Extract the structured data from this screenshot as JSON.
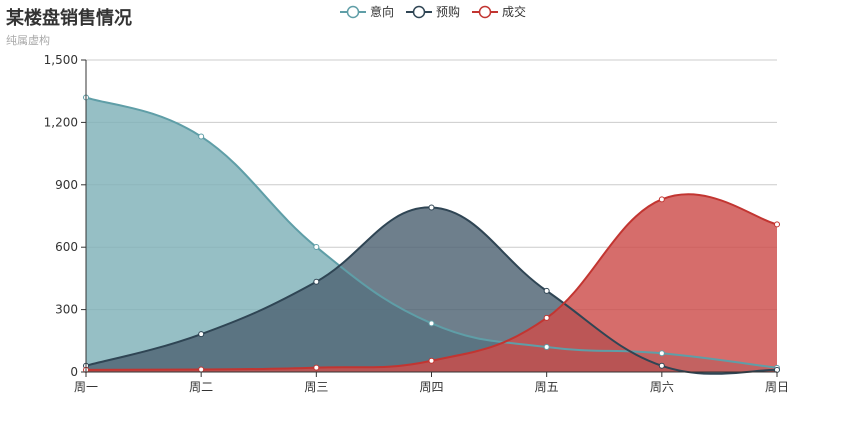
{
  "chart_data": {
    "type": "area",
    "title": "某楼盘销售情况",
    "subtitle": "纯属虚构",
    "categories": [
      "周一",
      "周二",
      "周三",
      "周四",
      "周五",
      "周六",
      "周日"
    ],
    "ylim": [
      0,
      1500
    ],
    "yticks": [
      0,
      300,
      600,
      900,
      1200,
      1500
    ],
    "ytick_labels": [
      "0",
      "300",
      "600",
      "900",
      "1,200",
      "1,500"
    ],
    "grid": true,
    "legend_position": "top-center",
    "series": [
      {
        "name": "意向",
        "values": [
          1320,
          1132,
          601,
          234,
          120,
          90,
          20
        ],
        "color": "#5f9ea7",
        "fill": "#7fb1b8"
      },
      {
        "name": "预购",
        "values": [
          30,
          182,
          434,
          791,
          390,
          30,
          10
        ],
        "color": "#2f4554",
        "fill": "#4e6373"
      },
      {
        "name": "成交",
        "values": [
          10,
          12,
          21,
          54,
          260,
          830,
          710
        ],
        "color": "#c23531",
        "fill": "#cd4d4a"
      }
    ]
  }
}
